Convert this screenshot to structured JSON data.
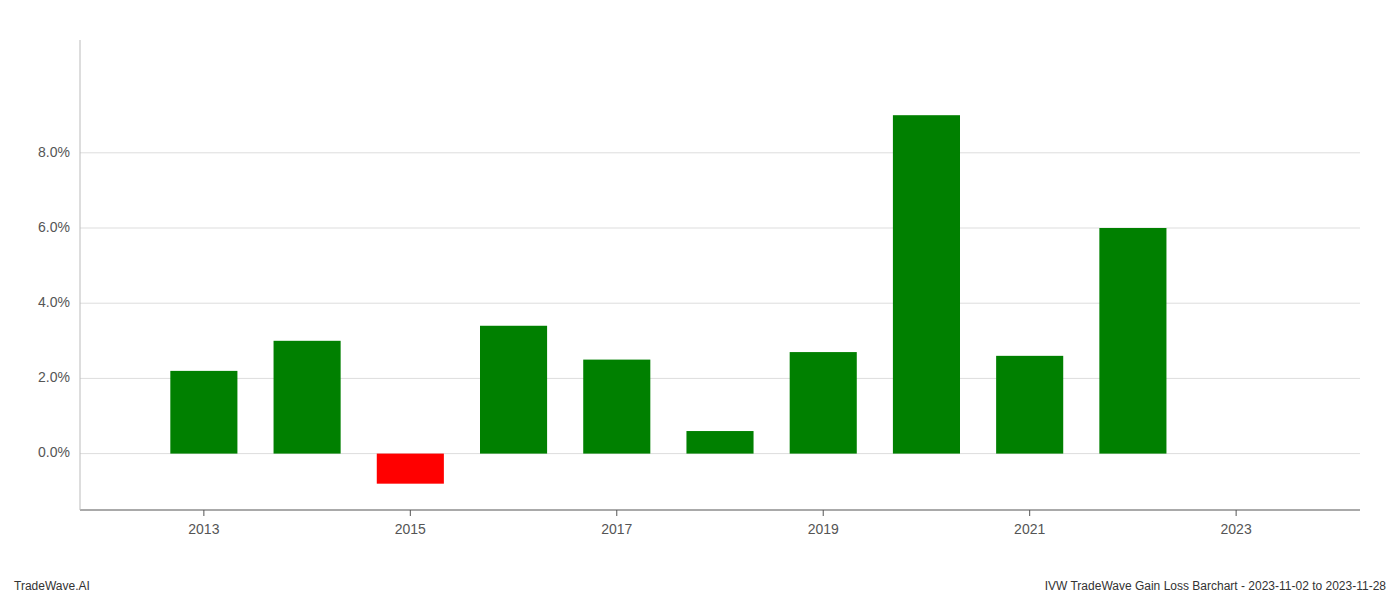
{
  "chart_data": {
    "type": "bar",
    "x": [
      2013,
      2014,
      2015,
      2016,
      2017,
      2018,
      2019,
      2020,
      2021,
      2022
    ],
    "values": [
      0.022,
      0.03,
      -0.008,
      0.034,
      0.025,
      0.006,
      0.027,
      0.09,
      0.026,
      0.06
    ],
    "colors": [
      "#008000",
      "#008000",
      "#ff0000",
      "#008000",
      "#008000",
      "#008000",
      "#008000",
      "#008000",
      "#008000",
      "#008000"
    ],
    "xlim": [
      2011.8,
      2024.2
    ],
    "xticks": [
      2013,
      2015,
      2017,
      2019,
      2021,
      2023
    ],
    "ylim": [
      -0.015,
      0.11
    ],
    "yticks": [
      {
        "value": 0.0,
        "label": "0.0%"
      },
      {
        "value": 0.02,
        "label": "2.0%"
      },
      {
        "value": 0.04,
        "label": "4.0%"
      },
      {
        "value": 0.06,
        "label": "6.0%"
      },
      {
        "value": 0.08,
        "label": "8.0%"
      }
    ],
    "grid": true,
    "annotations": [
      "TradeWave.AI",
      "IVW TradeWave Gain Loss Barchart - 2023-11-02 to 2023-11-28"
    ]
  }
}
